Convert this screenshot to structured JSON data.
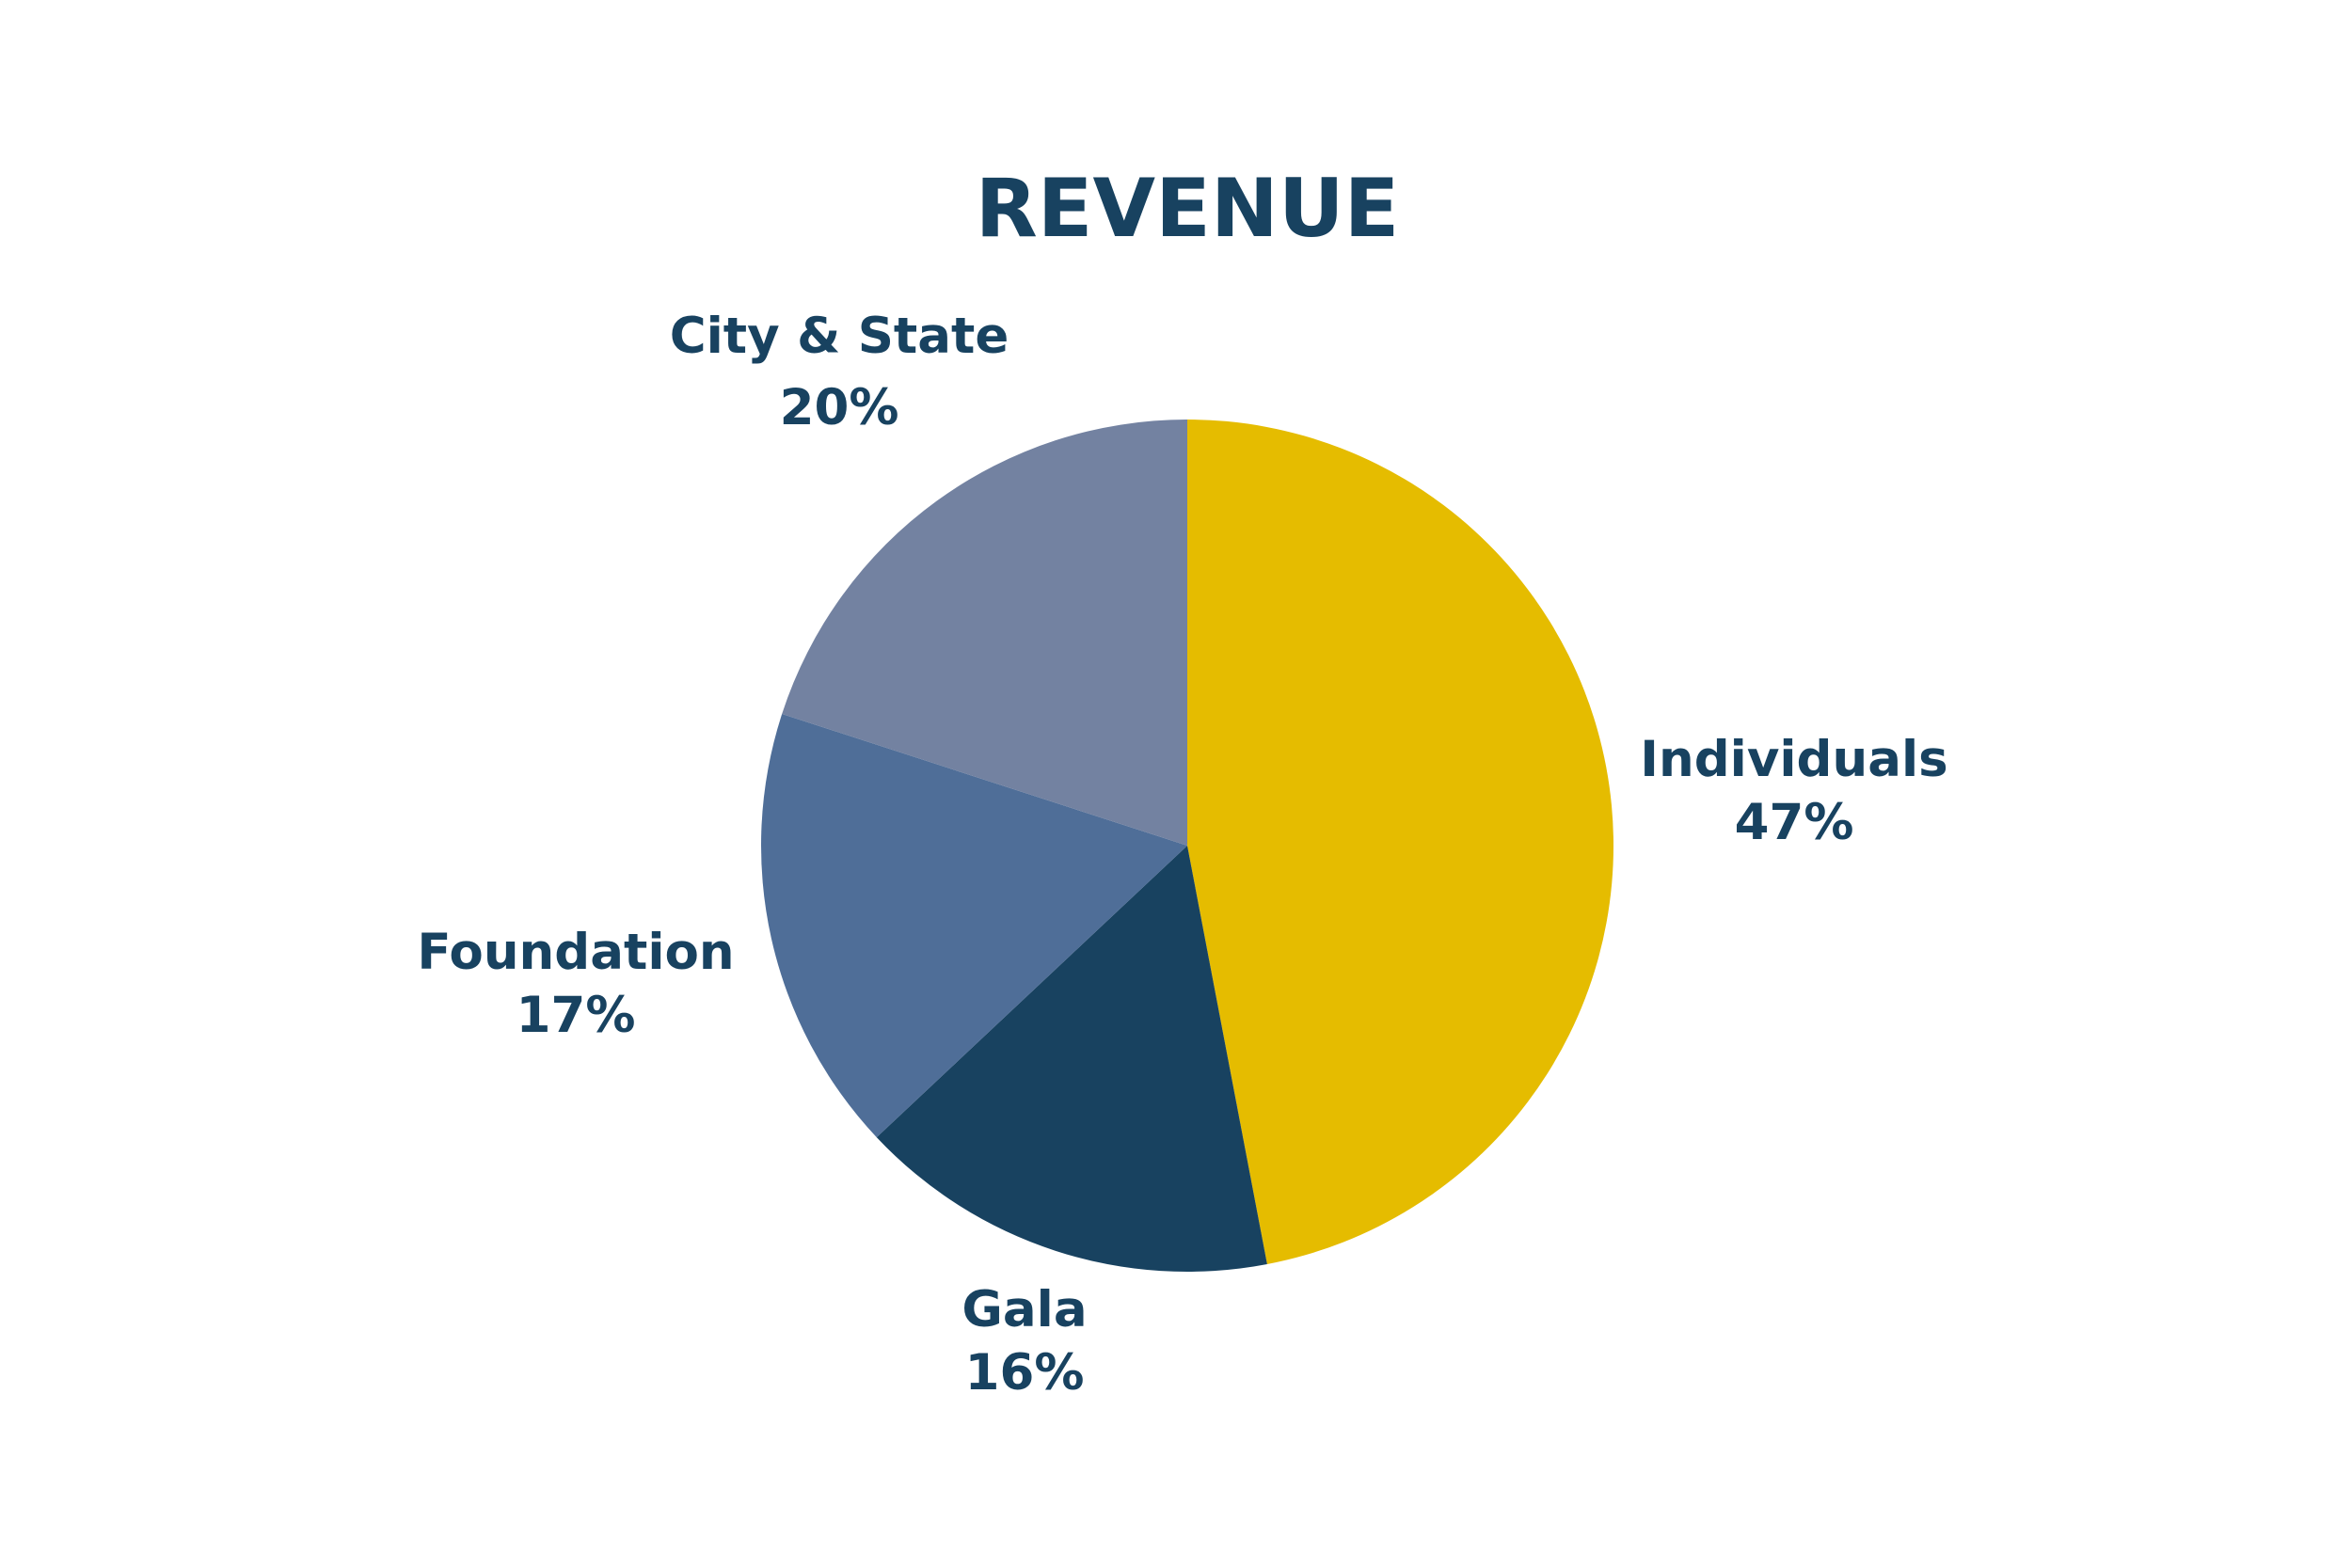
{
  "chart_data": {
    "type": "pie",
    "title": "REVENUE",
    "slices": [
      {
        "label": "Individuals",
        "value": 47,
        "value_label": "47%",
        "color": "#e5bc00"
      },
      {
        "label": "Gala",
        "value": 16,
        "value_label": "16%",
        "color": "#184260"
      },
      {
        "label": "Foundation",
        "value": 17,
        "value_label": "17%",
        "color": "#4f6e98"
      },
      {
        "label": "City & State",
        "value": 20,
        "value_label": "20%",
        "color": "#7382a1"
      }
    ],
    "text_color": "#184260",
    "legend": "none"
  }
}
